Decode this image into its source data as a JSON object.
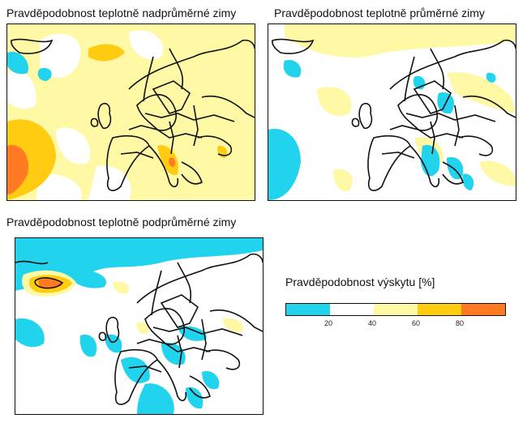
{
  "panels": {
    "above": {
      "title": "Pravděpodobnost teplotně nadprůměrné zimy"
    },
    "normal": {
      "title": "Pravděpodobnost teplotně průměrné zimy"
    },
    "below": {
      "title": "Pravděpodobnost teplotně podprůměrné zimy"
    }
  },
  "legend": {
    "title": "Pravděpodobnost výskytu [%]",
    "labels": [
      "20",
      "40",
      "60",
      "80"
    ],
    "colors": [
      "#22d3ee",
      "#ffffff",
      "#fff9a6",
      "#ffcc11",
      "#ff7a22"
    ]
  }
}
